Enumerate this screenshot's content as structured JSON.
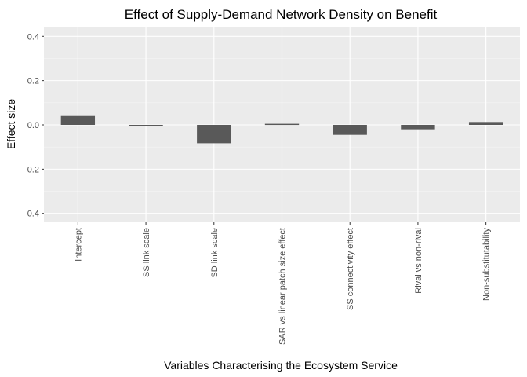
{
  "chart_data": {
    "type": "bar",
    "title": "Effect of Supply-Demand Network Density on Benefit",
    "xlabel": "Variables Characterising the Ecosystem Service",
    "ylabel": "Effect size",
    "categories": [
      "Intercept",
      "SS link scale",
      "SD link scale",
      "SAR vs linear patch size effect",
      "SS connectivity effect",
      "Rival vs non-rival",
      "Non-substitutability"
    ],
    "values": [
      0.04,
      -0.005,
      -0.083,
      0.005,
      -0.045,
      -0.02,
      0.013
    ],
    "ylim": [
      -0.44,
      0.44
    ],
    "yticks": [
      -0.4,
      -0.2,
      0.0,
      0.2,
      0.4
    ],
    "ytick_labels": [
      "-0.4",
      "-0.2",
      "0.0",
      "0.2",
      "0.4"
    ],
    "grid": true,
    "colors": {
      "panel": "#ebebeb",
      "grid_major": "#ffffff",
      "grid_minor": "#f5f5f5",
      "bar": "#595959",
      "tick": "#333333",
      "tick_text": "#4d4d4d"
    }
  }
}
